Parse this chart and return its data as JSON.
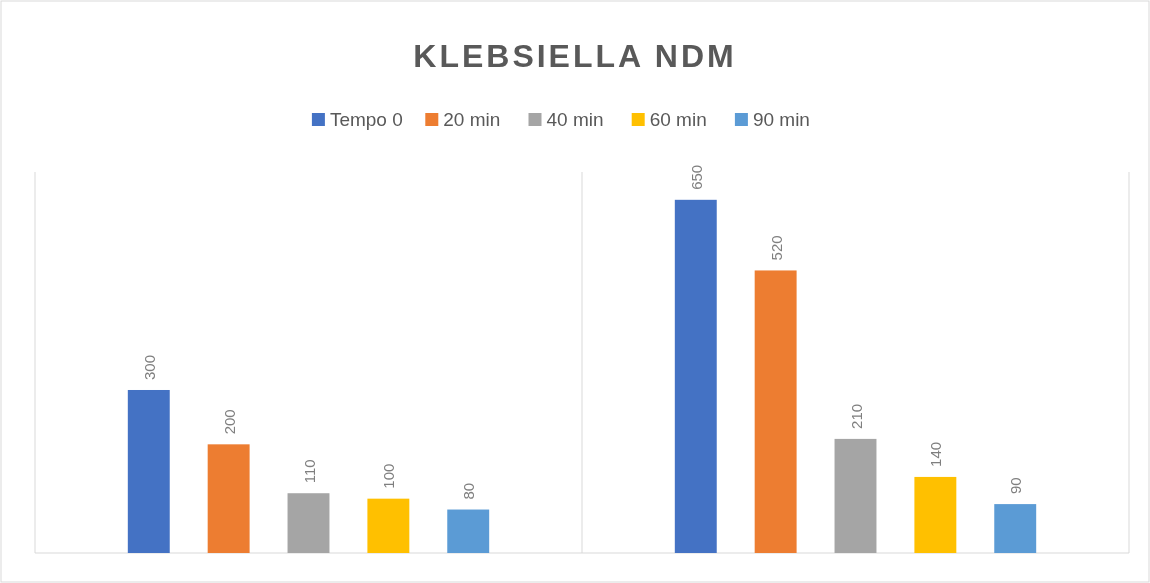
{
  "chart_data": {
    "type": "bar",
    "title": "KLEBSIELLA NDM",
    "categories": [
      null,
      null
    ],
    "series": [
      {
        "name": "Tempo 0",
        "color": "#4472c4",
        "values": [
          300,
          650
        ]
      },
      {
        "name": "20 min",
        "color": "#ed7d31",
        "values": [
          200,
          520
        ]
      },
      {
        "name": "40 min",
        "color": "#a5a5a5",
        "values": [
          110,
          210
        ]
      },
      {
        "name": "60 min",
        "color": "#ffc000",
        "values": [
          100,
          140
        ]
      },
      {
        "name": "90 min",
        "color": "#5b9bd5",
        "values": [
          80,
          90
        ]
      }
    ],
    "data_labels": true,
    "grid": "x",
    "legend": "top"
  }
}
